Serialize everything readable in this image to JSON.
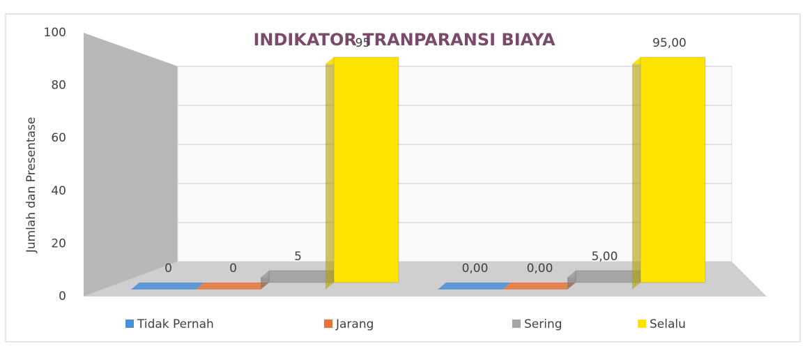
{
  "chart_data": {
    "type": "bar3d",
    "title": "INDIKATOR TRANPARANSI BIAYA",
    "y_label": "Jumlah dan Presentase",
    "categories": [
      null,
      null
    ],
    "series": [
      {
        "name": "Tidak Pernah",
        "color": "#4a8fd8",
        "values": [
          0,
          0
        ],
        "value_labels": [
          "0",
          "0,00"
        ]
      },
      {
        "name": "Jarang",
        "color": "#e8743b",
        "values": [
          0,
          0
        ],
        "value_labels": [
          "0",
          "0,00"
        ]
      },
      {
        "name": "Sering",
        "color": "#a5a5a5",
        "values": [
          5,
          5
        ],
        "value_labels": [
          "5",
          "5,00"
        ]
      },
      {
        "name": "Selalu",
        "color": "#ffe400",
        "values": [
          95,
          95
        ],
        "value_labels": [
          "95",
          "95,00"
        ]
      }
    ],
    "ylim": [
      0,
      100
    ],
    "yticks": [
      0,
      20,
      40,
      60,
      80,
      100
    ],
    "grid": true,
    "legend": "bottom"
  }
}
